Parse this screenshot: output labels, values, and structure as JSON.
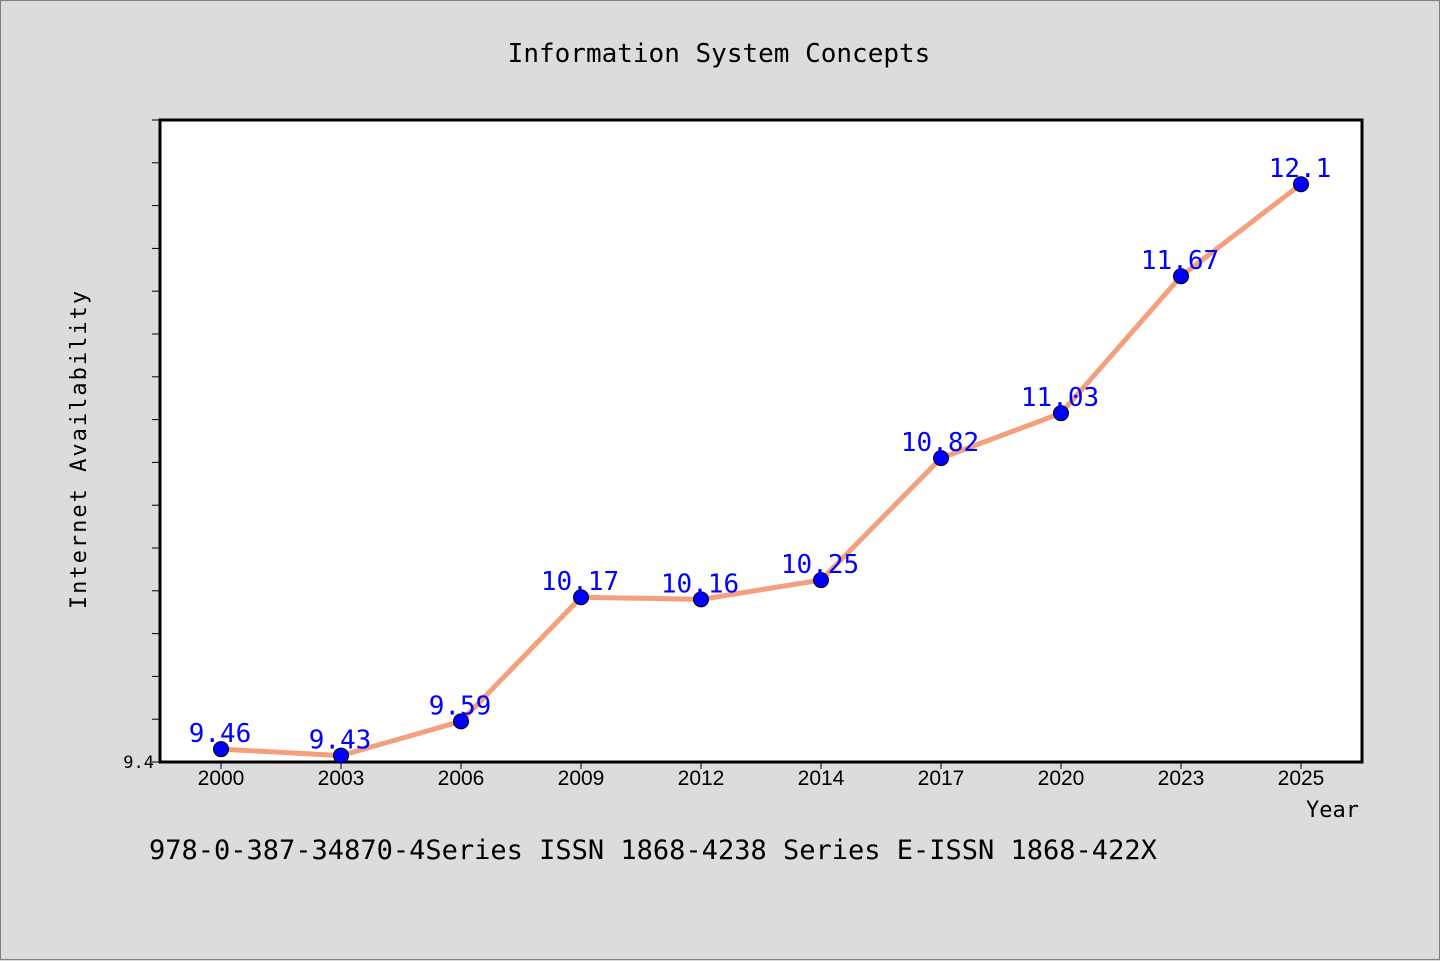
{
  "figure": {
    "title": "Information System Concepts",
    "footer": "978-0-387-34870-4Series ISSN 1868-4238 Series E-ISSN 1868-422X"
  },
  "chart_data": {
    "type": "line",
    "title": "Information System Concepts",
    "xlabel": "Year",
    "ylabel": "Internet Availability",
    "categories": [
      "2000",
      "2003",
      "2006",
      "2009",
      "2012",
      "2014",
      "2017",
      "2020",
      "2023",
      "2025"
    ],
    "series": [
      {
        "values": [
          9.46,
          9.43,
          9.59,
          10.17,
          10.16,
          10.25,
          10.82,
          11.03,
          11.67,
          12.1
        ],
        "data_labels": [
          "9.46",
          "9.43",
          "9.59",
          "10.17",
          "10.16",
          "10.25",
          "10.82",
          "11.03",
          "11.67",
          "12.1"
        ],
        "line_color": "#f4a07e",
        "marker_color": "#0000ff"
      }
    ],
    "ylim": [
      9.4,
      12.4
    ],
    "ytick_labels": [
      "9.4"
    ],
    "grid": false,
    "label_color": "#0000ff"
  }
}
